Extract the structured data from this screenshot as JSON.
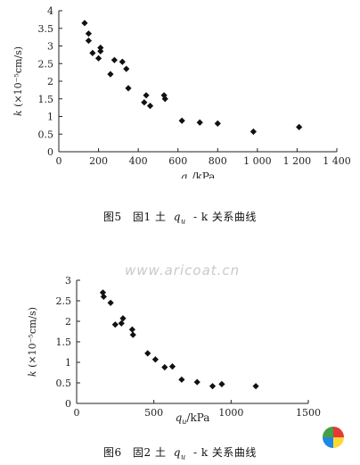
{
  "watermark": "www.aricoat.cn",
  "colors": {
    "marker": "#111111",
    "axis": "#222222",
    "logo": [
      "#e53935",
      "#fdd835",
      "#1e88e5",
      "#43a047"
    ]
  },
  "figures": [
    {
      "caption": {
        "num": "图5",
        "text": "固1 土",
        "var": "q",
        "sub": "u",
        "rest": "- k 关系曲线"
      }
    },
    {
      "caption": {
        "num": "图6",
        "text": "固2 土",
        "var": "q",
        "sub": "u",
        "rest": "- k 关系曲线"
      }
    }
  ],
  "chart_data": [
    {
      "type": "scatter",
      "xlabel": "q u /kPa",
      "ylabel": "k (×10⁻⁵cm/s)",
      "xlim": [
        0,
        1400
      ],
      "ylim": [
        0,
        4
      ],
      "x_ticks": [
        0,
        200,
        400,
        600,
        800,
        1000,
        1200,
        1400
      ],
      "x_tick_labels": [
        "0",
        "200",
        "400",
        "600",
        "800",
        "1 000",
        "1 200",
        "1 400"
      ],
      "y_ticks": [
        0,
        0.5,
        1,
        1.5,
        2,
        2.5,
        3,
        3.5,
        4
      ],
      "y_tick_labels": [
        "0",
        "0.5",
        "1",
        "1.5",
        "2",
        "2.5",
        "3",
        "3.5",
        "4"
      ],
      "grid": false,
      "points": [
        [
          130,
          3.65
        ],
        [
          150,
          3.35
        ],
        [
          150,
          3.15
        ],
        [
          170,
          2.8
        ],
        [
          210,
          2.95
        ],
        [
          210,
          2.85
        ],
        [
          200,
          2.65
        ],
        [
          260,
          2.2
        ],
        [
          280,
          2.6
        ],
        [
          320,
          2.55
        ],
        [
          340,
          2.35
        ],
        [
          350,
          1.8
        ],
        [
          430,
          1.4
        ],
        [
          440,
          1.6
        ],
        [
          460,
          1.3
        ],
        [
          530,
          1.6
        ],
        [
          535,
          1.5
        ],
        [
          620,
          0.88
        ],
        [
          710,
          0.83
        ],
        [
          800,
          0.8
        ],
        [
          980,
          0.57
        ],
        [
          1210,
          0.7
        ]
      ]
    },
    {
      "type": "scatter",
      "xlabel": "q u /kPa",
      "ylabel": "k (×10⁻⁵cm/s)",
      "xlim": [
        0,
        1500
      ],
      "ylim": [
        0,
        3
      ],
      "x_ticks": [
        0,
        500,
        1000,
        1500
      ],
      "x_tick_labels": [
        "0",
        "500",
        "1000",
        "1500"
      ],
      "y_ticks": [
        0,
        0.5,
        1,
        1.5,
        2,
        2.5,
        3
      ],
      "y_tick_labels": [
        "0",
        "0.5",
        "1",
        "1.5",
        "2",
        "2.5",
        "3"
      ],
      "grid": false,
      "points": [
        [
          170,
          2.7
        ],
        [
          175,
          2.6
        ],
        [
          220,
          2.45
        ],
        [
          250,
          1.92
        ],
        [
          290,
          1.95
        ],
        [
          300,
          2.07
        ],
        [
          360,
          1.8
        ],
        [
          365,
          1.67
        ],
        [
          460,
          1.22
        ],
        [
          510,
          1.07
        ],
        [
          570,
          0.88
        ],
        [
          620,
          0.9
        ],
        [
          680,
          0.58
        ],
        [
          780,
          0.52
        ],
        [
          880,
          0.42
        ],
        [
          940,
          0.47
        ],
        [
          1160,
          0.42
        ]
      ]
    }
  ]
}
